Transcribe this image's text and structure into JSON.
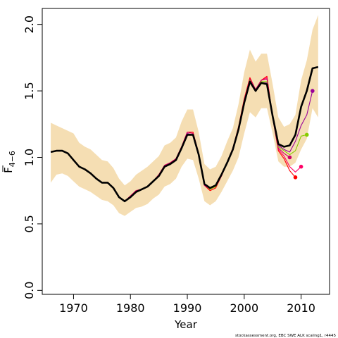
{
  "chart_data": {
    "type": "line",
    "title": "",
    "xlabel": "Year",
    "ylabel": "F",
    "ylabel_subscript": "4−6",
    "xlim": [
      1964.5,
      2015
    ],
    "ylim": [
      -0.03,
      2.12
    ],
    "x_ticks": [
      1970,
      1980,
      1990,
      2000,
      2010
    ],
    "y_ticks": [
      0.0,
      0.5,
      1.0,
      1.5,
      2.0
    ],
    "y_tick_labels": [
      "0.0",
      "0.5",
      "1.0",
      "1.5",
      "2.0"
    ],
    "grid": false,
    "legend": "none",
    "footnote": "stockassessment.org, EBC SWE ALK scaling1, r4445",
    "colors": {
      "band": "#f5deb3",
      "main": "#000000",
      "retro_1": "#ff0000",
      "retro_2": "#ff0066",
      "retro_3": "#cc0066",
      "retro_4": "#88cc00",
      "retro_5": "#990099"
    },
    "band": {
      "x": [
        1966,
        1967,
        1968,
        1969,
        1970,
        1971,
        1972,
        1973,
        1974,
        1975,
        1976,
        1977,
        1978,
        1979,
        1980,
        1981,
        1982,
        1983,
        1984,
        1985,
        1986,
        1987,
        1988,
        1989,
        1990,
        1991,
        1992,
        1993,
        1994,
        1995,
        1996,
        1997,
        1998,
        1999,
        2000,
        2001,
        2002,
        2003,
        2004,
        2005,
        2006,
        2007,
        2008,
        2009,
        2010,
        2011,
        2012,
        2013
      ],
      "lower": [
        0.81,
        0.87,
        0.88,
        0.86,
        0.82,
        0.78,
        0.76,
        0.74,
        0.71,
        0.68,
        0.67,
        0.64,
        0.58,
        0.56,
        0.59,
        0.62,
        0.63,
        0.65,
        0.69,
        0.72,
        0.78,
        0.8,
        0.84,
        0.93,
        0.99,
        0.98,
        0.84,
        0.67,
        0.64,
        0.67,
        0.74,
        0.82,
        0.9,
        1.0,
        1.18,
        1.34,
        1.3,
        1.37,
        1.37,
        1.18,
        0.97,
        0.93,
        0.93,
        0.96,
        1.06,
        1.14,
        1.37,
        1.3
      ],
      "upper": [
        1.26,
        1.24,
        1.22,
        1.2,
        1.18,
        1.11,
        1.08,
        1.06,
        1.02,
        0.98,
        0.97,
        0.92,
        0.84,
        0.79,
        0.82,
        0.87,
        0.9,
        0.93,
        0.97,
        1.01,
        1.09,
        1.11,
        1.15,
        1.27,
        1.36,
        1.36,
        1.19,
        0.95,
        0.91,
        0.93,
        1.01,
        1.12,
        1.22,
        1.4,
        1.64,
        1.81,
        1.72,
        1.78,
        1.78,
        1.55,
        1.3,
        1.23,
        1.25,
        1.32,
        1.58,
        1.73,
        1.96,
        2.07
      ]
    },
    "series": [
      {
        "color_key": "main",
        "x": [
          1966,
          1967,
          1968,
          1969,
          1970,
          1971,
          1972,
          1973,
          1974,
          1975,
          1976,
          1977,
          1978,
          1979,
          1980,
          1981,
          1982,
          1983,
          1984,
          1985,
          1986,
          1987,
          1988,
          1989,
          1990,
          1991,
          1992,
          1993,
          1994,
          1995,
          1996,
          1997,
          1998,
          1999,
          2000,
          2001,
          2002,
          2003,
          2004,
          2005,
          2006,
          2007,
          2008,
          2009,
          2010,
          2011,
          2012,
          2013
        ],
        "y": [
          1.04,
          1.05,
          1.05,
          1.03,
          0.98,
          0.93,
          0.91,
          0.88,
          0.84,
          0.81,
          0.81,
          0.77,
          0.7,
          0.67,
          0.7,
          0.74,
          0.76,
          0.78,
          0.82,
          0.86,
          0.93,
          0.95,
          0.98,
          1.07,
          1.17,
          1.17,
          1.02,
          0.8,
          0.77,
          0.79,
          0.87,
          0.96,
          1.06,
          1.21,
          1.41,
          1.57,
          1.5,
          1.56,
          1.55,
          1.31,
          1.1,
          1.08,
          1.09,
          1.17,
          1.38,
          1.5,
          1.67,
          1.68
        ]
      },
      {
        "color_key": "retro_1",
        "x": [
          1966,
          1967,
          1968,
          1969,
          1970,
          1971,
          1972,
          1973,
          1974,
          1975,
          1976,
          1977,
          1978,
          1979,
          1980,
          1981,
          1982,
          1983,
          1984,
          1985,
          1986,
          1987,
          1988,
          1989,
          1990,
          1991,
          1992,
          1993,
          1994,
          1995,
          1996,
          1997,
          1998,
          1999,
          2000,
          2001,
          2002,
          2003,
          2004,
          2005,
          2006,
          2007,
          2008,
          2009
        ],
        "y": [
          1.04,
          1.05,
          1.05,
          1.03,
          0.98,
          0.93,
          0.91,
          0.88,
          0.84,
          0.81,
          0.81,
          0.77,
          0.7,
          0.67,
          0.71,
          0.75,
          0.76,
          0.78,
          0.82,
          0.87,
          0.94,
          0.96,
          0.99,
          1.08,
          1.19,
          1.19,
          1.03,
          0.79,
          0.75,
          0.77,
          0.86,
          0.96,
          1.07,
          1.23,
          1.44,
          1.6,
          1.51,
          1.58,
          1.61,
          1.3,
          1.05,
          0.99,
          0.9,
          0.85
        ],
        "end_marker": true
      },
      {
        "color_key": "retro_2",
        "x": [
          1966,
          1967,
          1968,
          1969,
          1970,
          1971,
          1972,
          1973,
          1974,
          1975,
          1976,
          1977,
          1978,
          1979,
          1980,
          1981,
          1982,
          1983,
          1984,
          1985,
          1986,
          1987,
          1988,
          1989,
          1990,
          1991,
          1992,
          1993,
          1994,
          1995,
          1996,
          1997,
          1998,
          1999,
          2000,
          2001,
          2002,
          2003,
          2004,
          2005,
          2006,
          2007,
          2008,
          2009,
          2010
        ],
        "y": [
          1.04,
          1.05,
          1.05,
          1.03,
          0.98,
          0.93,
          0.91,
          0.88,
          0.84,
          0.81,
          0.81,
          0.77,
          0.7,
          0.67,
          0.71,
          0.75,
          0.76,
          0.78,
          0.82,
          0.87,
          0.94,
          0.96,
          0.99,
          1.08,
          1.19,
          1.18,
          1.02,
          0.79,
          0.76,
          0.78,
          0.86,
          0.96,
          1.07,
          1.22,
          1.43,
          1.59,
          1.51,
          1.58,
          1.6,
          1.3,
          1.06,
          1.01,
          0.93,
          0.89,
          0.93
        ],
        "end_marker": true
      },
      {
        "color_key": "retro_3",
        "x": [
          1966,
          1967,
          1968,
          1969,
          1970,
          1971,
          1972,
          1973,
          1974,
          1975,
          1976,
          1977,
          1978,
          1979,
          1980,
          1981,
          1982,
          1983,
          1984,
          1985,
          1986,
          1987,
          1988,
          1989,
          1990,
          1991,
          1992,
          1993,
          1994,
          1995,
          1996,
          1997,
          1998,
          1999,
          2000,
          2001,
          2002,
          2003,
          2004,
          2005,
          2006,
          2007,
          2008
        ],
        "y": [
          1.04,
          1.05,
          1.05,
          1.03,
          0.98,
          0.93,
          0.91,
          0.88,
          0.84,
          0.81,
          0.81,
          0.77,
          0.7,
          0.67,
          0.71,
          0.75,
          0.76,
          0.78,
          0.82,
          0.87,
          0.94,
          0.96,
          0.99,
          1.08,
          1.19,
          1.18,
          1.02,
          0.79,
          0.76,
          0.78,
          0.86,
          0.96,
          1.07,
          1.22,
          1.43,
          1.59,
          1.51,
          1.58,
          1.59,
          1.3,
          1.07,
          1.03,
          1.0
        ],
        "end_marker": true
      },
      {
        "color_key": "retro_4",
        "x": [
          1966,
          1967,
          1968,
          1969,
          1970,
          1971,
          1972,
          1973,
          1974,
          1975,
          1976,
          1977,
          1978,
          1979,
          1980,
          1981,
          1982,
          1983,
          1984,
          1985,
          1986,
          1987,
          1988,
          1989,
          1990,
          1991,
          1992,
          1993,
          1994,
          1995,
          1996,
          1997,
          1998,
          1999,
          2000,
          2001,
          2002,
          2003,
          2004,
          2005,
          2006,
          2007,
          2008,
          2009,
          2010,
          2011
        ],
        "y": [
          1.04,
          1.05,
          1.05,
          1.03,
          0.98,
          0.93,
          0.91,
          0.88,
          0.84,
          0.81,
          0.81,
          0.77,
          0.7,
          0.67,
          0.7,
          0.74,
          0.76,
          0.78,
          0.82,
          0.86,
          0.93,
          0.95,
          0.98,
          1.07,
          1.18,
          1.17,
          1.02,
          0.8,
          0.76,
          0.78,
          0.87,
          0.96,
          1.06,
          1.21,
          1.42,
          1.58,
          1.5,
          1.57,
          1.57,
          1.3,
          1.08,
          1.05,
          1.02,
          1.05,
          1.16,
          1.17
        ],
        "end_marker": true
      },
      {
        "color_key": "retro_5",
        "x": [
          1966,
          1967,
          1968,
          1969,
          1970,
          1971,
          1972,
          1973,
          1974,
          1975,
          1976,
          1977,
          1978,
          1979,
          1980,
          1981,
          1982,
          1983,
          1984,
          1985,
          1986,
          1987,
          1988,
          1989,
          1990,
          1991,
          1992,
          1993,
          1994,
          1995,
          1996,
          1997,
          1998,
          1999,
          2000,
          2001,
          2002,
          2003,
          2004,
          2005,
          2006,
          2007,
          2008,
          2009,
          2010,
          2011,
          2012
        ],
        "y": [
          1.04,
          1.05,
          1.05,
          1.03,
          0.98,
          0.93,
          0.91,
          0.88,
          0.84,
          0.81,
          0.81,
          0.77,
          0.7,
          0.67,
          0.7,
          0.74,
          0.76,
          0.78,
          0.82,
          0.86,
          0.93,
          0.95,
          0.98,
          1.07,
          1.18,
          1.17,
          1.02,
          0.8,
          0.77,
          0.79,
          0.87,
          0.96,
          1.06,
          1.21,
          1.41,
          1.57,
          1.5,
          1.56,
          1.56,
          1.31,
          1.09,
          1.06,
          1.04,
          1.12,
          1.24,
          1.32,
          1.5
        ],
        "end_marker": true
      }
    ]
  }
}
